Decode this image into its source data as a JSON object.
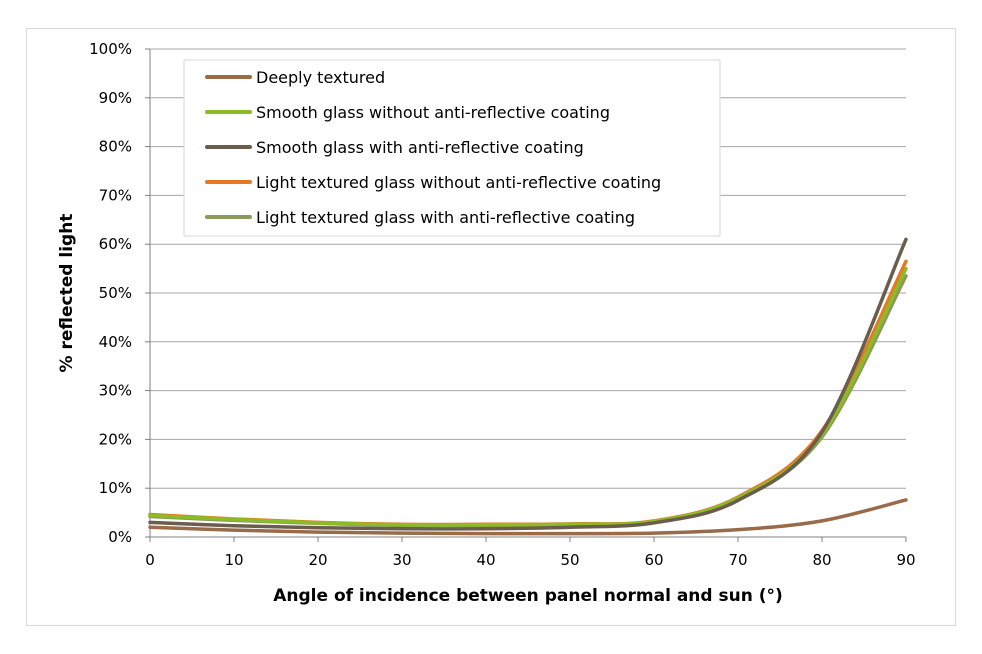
{
  "chart_data": {
    "type": "line",
    "title": "",
    "xlabel": "Angle of incidence between panel normal and sun (°)",
    "ylabel": "% reflected light",
    "xlim": [
      0,
      90
    ],
    "ylim": [
      0,
      100
    ],
    "x_ticks": [
      "0",
      "10",
      "20",
      "30",
      "40",
      "50",
      "60",
      "70",
      "80",
      "90"
    ],
    "y_ticks": [
      "0%",
      "10%",
      "20%",
      "30%",
      "40%",
      "50%",
      "60%",
      "70%",
      "80%",
      "90%",
      "100%"
    ],
    "grid": true,
    "legend_position": "top-left",
    "x": [
      0,
      10,
      20,
      30,
      40,
      50,
      60,
      70,
      80,
      90
    ],
    "series": [
      {
        "name": "Deeply textured",
        "color": "#9a6b48",
        "values": [
          2.0,
          1.4,
          1.0,
          0.8,
          0.7,
          0.7,
          0.8,
          1.5,
          3.3,
          7.6
        ]
      },
      {
        "name": "Smooth glass without anti-reflective coating",
        "color": "#8dbb25",
        "values": [
          4.4,
          3.6,
          2.9,
          2.5,
          2.5,
          2.6,
          3.2,
          8.0,
          21.0,
          55.0
        ]
      },
      {
        "name": "Smooth glass with anti-reflective coating",
        "color": "#6b5d4d",
        "values": [
          3.0,
          2.3,
          1.9,
          1.7,
          1.7,
          2.0,
          2.9,
          7.5,
          21.5,
          61.0
        ]
      },
      {
        "name": "Light textured glass without anti-reflective coating",
        "color": "#e87722",
        "values": [
          4.6,
          3.7,
          3.0,
          2.6,
          2.6,
          2.7,
          3.3,
          8.2,
          21.8,
          56.5
        ]
      },
      {
        "name": "Light textured glass with anti-reflective coating",
        "color": "#8a9a5b",
        "values": [
          4.2,
          3.4,
          2.8,
          2.4,
          2.4,
          2.5,
          3.1,
          7.8,
          20.5,
          53.5
        ]
      }
    ]
  }
}
